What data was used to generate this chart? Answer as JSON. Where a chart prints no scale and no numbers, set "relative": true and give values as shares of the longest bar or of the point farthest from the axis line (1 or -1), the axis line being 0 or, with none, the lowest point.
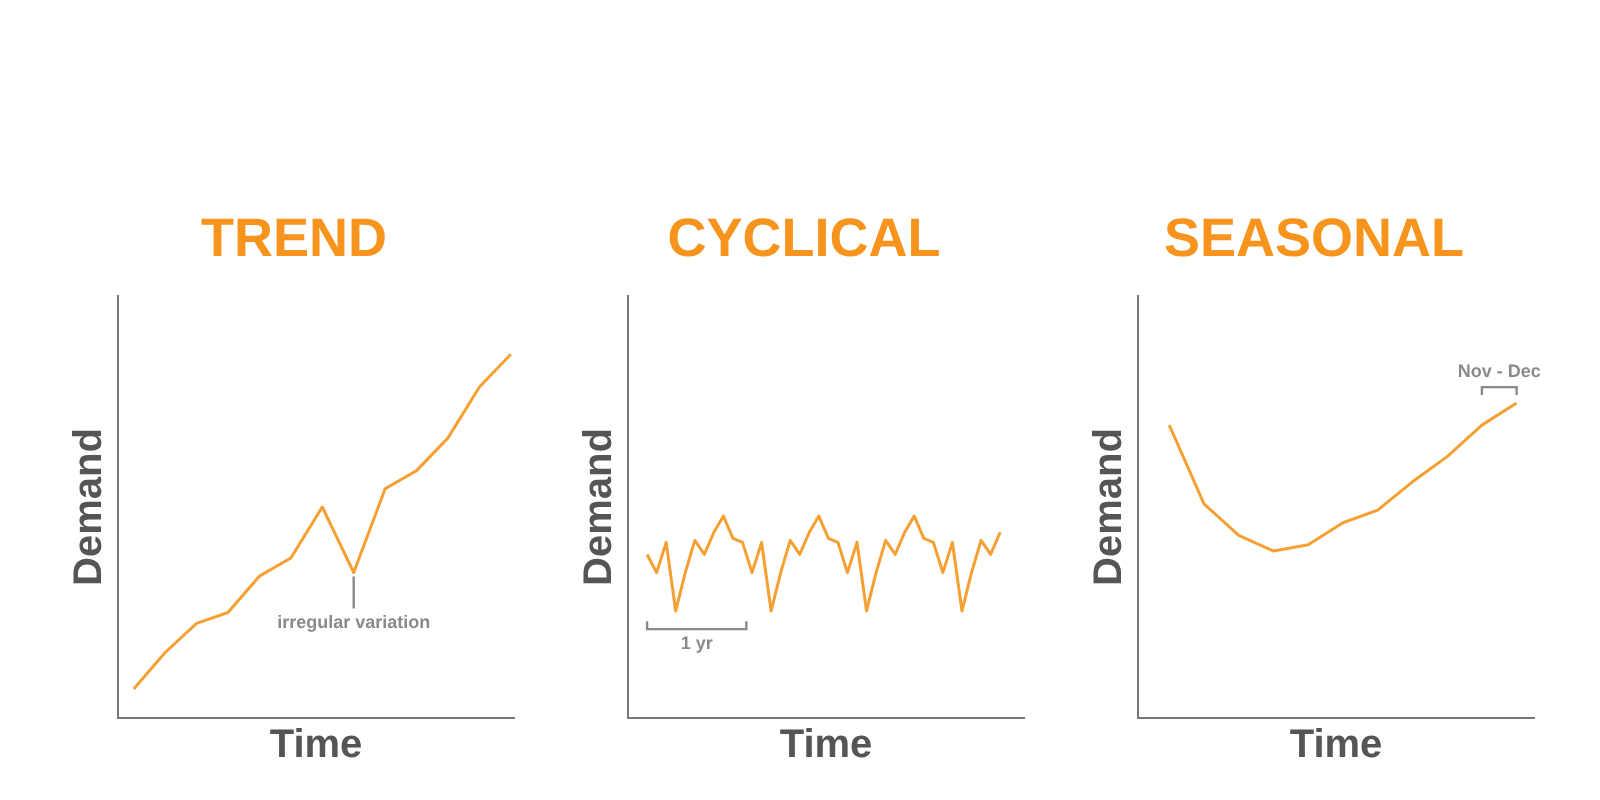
{
  "chart_data": [
    {
      "type": "line",
      "title": "TREND",
      "xlabel": "Time",
      "ylabel": "Demand",
      "relative": true,
      "categories": [
        null,
        null,
        null,
        null,
        null,
        null,
        null,
        null,
        null,
        null,
        null,
        null,
        null
      ],
      "series": [
        {
          "color": "#f5a033",
          "values": [
            0.08,
            0.18,
            0.26,
            0.29,
            0.39,
            0.44,
            0.58,
            0.4,
            0.63,
            0.68,
            0.77,
            0.91,
            1.0
          ]
        }
      ],
      "annotations": [
        "irregular variation"
      ],
      "grid": false,
      "legend": false,
      "marker": "none",
      "tick_labels": false
    },
    {
      "type": "line",
      "title": "CYCLICAL",
      "xlabel": "Time",
      "ylabel": "Demand",
      "relative": true,
      "categories": [
        null,
        null,
        null,
        null,
        null,
        null,
        null,
        null,
        null,
        null,
        null,
        null,
        null,
        null,
        null,
        null,
        null,
        null,
        null,
        null,
        null,
        null,
        null,
        null,
        null,
        null,
        null,
        null,
        null,
        null,
        null,
        null,
        null,
        null,
        null,
        null,
        null,
        null
      ],
      "series": [
        {
          "color": "#f5a033",
          "values": [
            0.81,
            0.72,
            0.87,
            0.53,
            0.72,
            0.88,
            0.81,
            0.92,
            1.0,
            0.89,
            0.87,
            0.72,
            0.87,
            0.53,
            0.72,
            0.88,
            0.81,
            0.92,
            1.0,
            0.89,
            0.87,
            0.72,
            0.87,
            0.53,
            0.72,
            0.88,
            0.81,
            0.92,
            1.0,
            0.89,
            0.87,
            0.72,
            0.87,
            0.53,
            0.72,
            0.88,
            0.81,
            0.92
          ]
        }
      ],
      "annotations": [
        "1 yr"
      ],
      "grid": false,
      "legend": false,
      "marker": "none",
      "tick_labels": false
    },
    {
      "type": "line",
      "title": "SEASONAL",
      "xlabel": "Time",
      "ylabel": "Demand",
      "relative": true,
      "categories": [
        null,
        null,
        null,
        null,
        null,
        null,
        null,
        null,
        null,
        null,
        null
      ],
      "series": [
        {
          "color": "#f5a033",
          "values": [
            0.93,
            0.68,
            0.58,
            0.53,
            0.55,
            0.62,
            0.66,
            0.75,
            0.83,
            0.93,
            1.0
          ]
        }
      ],
      "annotations": [
        "Nov - Dec"
      ],
      "grid": false,
      "legend": false,
      "marker": "none",
      "tick_labels": false
    }
  ]
}
